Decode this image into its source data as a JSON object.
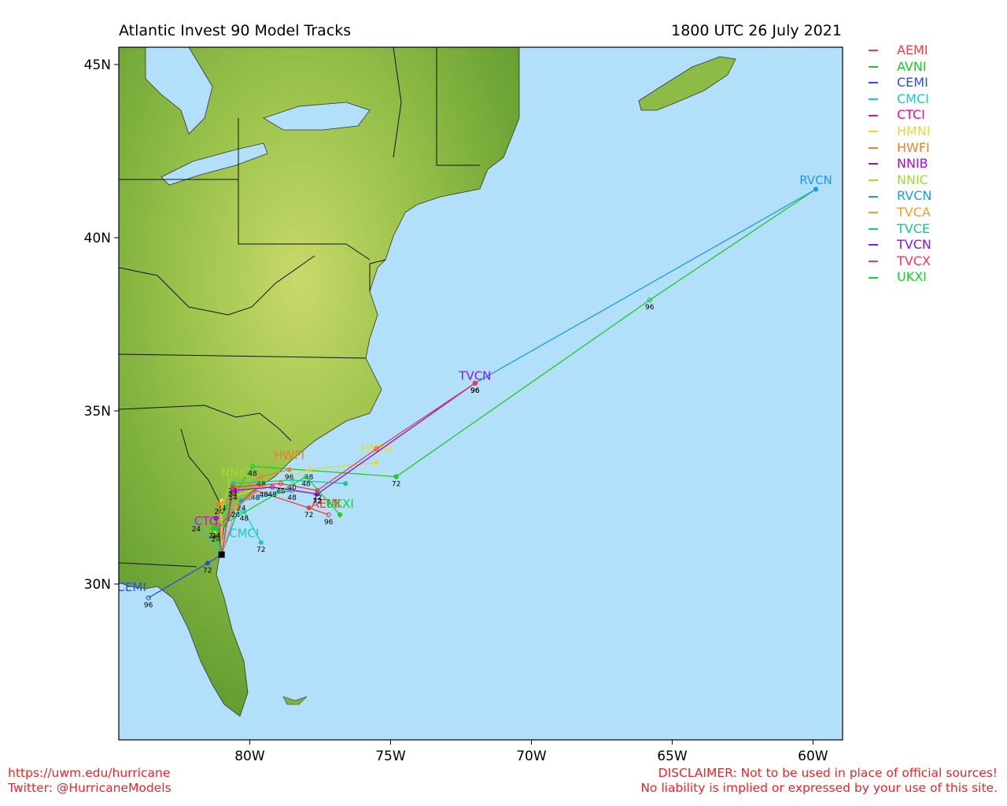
{
  "title": "Atlantic Invest 90 Model Tracks",
  "valid_time": "1800 UTC 26 July 2021",
  "axes": {
    "lon_ticks": [
      {
        "lon": -80,
        "label": "80W"
      },
      {
        "lon": -75,
        "label": "75W"
      },
      {
        "lon": -70,
        "label": "70W"
      },
      {
        "lon": -65,
        "label": "65W"
      },
      {
        "lon": -60,
        "label": "60W"
      }
    ],
    "lat_ticks": [
      {
        "lat": 45,
        "label": "45N"
      },
      {
        "lat": 40,
        "label": "40N"
      },
      {
        "lat": 35,
        "label": "35N"
      },
      {
        "lat": 30,
        "label": "30N"
      }
    ],
    "lon_range": [
      -84.65,
      -58.95
    ],
    "lat_range": [
      25.5,
      45.5
    ]
  },
  "colors": {
    "ocean": "#b2e0fa",
    "land": "#7cb342",
    "border": "#111111"
  },
  "legend": [
    {
      "name": "AEMI",
      "color": "#f03c3c"
    },
    {
      "name": "AVNI",
      "color": "#22c822"
    },
    {
      "name": "CEMI",
      "color": "#2a4fe0"
    },
    {
      "name": "CMCI",
      "color": "#1ec8c8"
    },
    {
      "name": "CTCI",
      "color": "#e0109a"
    },
    {
      "name": "HMNI",
      "color": "#e6d83c"
    },
    {
      "name": "HWFI",
      "color": "#e68232"
    },
    {
      "name": "NNIB",
      "color": "#a012c8"
    },
    {
      "name": "NNIC",
      "color": "#a0dc32"
    },
    {
      "name": "RVCN",
      "color": "#1e9be6"
    },
    {
      "name": "TVCA",
      "color": "#e6a03c"
    },
    {
      "name": "TVCE",
      "color": "#14c896"
    },
    {
      "name": "TVCN",
      "color": "#8c14e6"
    },
    {
      "name": "TVCX",
      "color": "#eb3c50"
    },
    {
      "name": "UKXI",
      "color": "#14d228"
    }
  ],
  "storm_start": {
    "lon": -81.0,
    "lat": 30.85
  },
  "tracks": [
    {
      "model": "AEMI",
      "color": "#f03c3c",
      "label": "AEMI",
      "label_at": {
        "lon": -77.3,
        "lat": 32.2
      },
      "points": [
        [
          -81.0,
          30.85,
          ""
        ],
        [
          -81.2,
          31.6,
          "24"
        ],
        [
          -79.8,
          32.7,
          "48"
        ],
        [
          -77.9,
          32.2,
          "72"
        ],
        [
          -77.2,
          32.0,
          "96"
        ]
      ]
    },
    {
      "model": "AVNI",
      "color": "#22c822",
      "label": "",
      "label_at": null,
      "points": [
        [
          -81.0,
          30.85,
          ""
        ],
        [
          -81.3,
          31.6,
          "24"
        ],
        [
          -79.9,
          33.4,
          "48"
        ],
        [
          -74.8,
          33.1,
          "72"
        ],
        [
          -65.8,
          38.2,
          "96"
        ],
        [
          -59.9,
          41.4,
          ""
        ]
      ]
    },
    {
      "model": "CEMI",
      "color": "#2a4fe0",
      "label": "CEMI",
      "label_at": {
        "lon": -84.2,
        "lat": 29.8
      },
      "points": [
        [
          -81.0,
          30.85,
          ""
        ],
        [
          -81.5,
          30.6,
          "72"
        ],
        [
          -83.6,
          29.6,
          "96"
        ]
      ]
    },
    {
      "model": "CMCI",
      "color": "#1ec8c8",
      "label": "CMCI",
      "label_at": {
        "lon": -80.2,
        "lat": 31.35
      },
      "points": [
        [
          -81.0,
          30.85,
          ""
        ],
        [
          -81.9,
          31.8,
          "24"
        ],
        [
          -80.2,
          32.1,
          "48"
        ],
        [
          -79.6,
          31.2,
          "72"
        ]
      ]
    },
    {
      "model": "CTCI",
      "color": "#e0109a",
      "label": "CTCI",
      "label_at": {
        "lon": -81.5,
        "lat": 31.7
      },
      "points": [
        [
          -81.0,
          30.85,
          ""
        ],
        [
          -81.1,
          31.7,
          ""
        ]
      ]
    },
    {
      "model": "HMNI",
      "color": "#e6d83c",
      "label": "HMNI",
      "label_at": {
        "lon": -75.5,
        "lat": 33.8
      },
      "points": [
        [
          -81.0,
          30.85,
          ""
        ],
        [
          -81.0,
          32.4,
          "24"
        ],
        [
          -77.9,
          33.3,
          "48"
        ],
        [
          -75.5,
          33.5,
          ""
        ]
      ]
    },
    {
      "model": "HWFI",
      "color": "#e68232",
      "label": "HWFI",
      "label_at": {
        "lon": -78.6,
        "lat": 33.6
      },
      "points": [
        [
          -81.0,
          30.85,
          ""
        ],
        [
          -81.1,
          32.3,
          "24"
        ],
        [
          -79.6,
          33.1,
          "48"
        ],
        [
          -78.6,
          33.3,
          "96"
        ]
      ]
    },
    {
      "model": "NNIB",
      "color": "#a012c8",
      "label": "",
      "label_at": null,
      "points": [
        [
          -81.0,
          30.85,
          ""
        ],
        [
          -81.2,
          31.9,
          ""
        ]
      ]
    },
    {
      "model": "NNIC",
      "color": "#a0dc32",
      "label": "NNIC",
      "label_at": {
        "lon": -80.5,
        "lat": 33.1
      },
      "points": [
        [
          -81.0,
          30.85,
          ""
        ],
        [
          -81.2,
          31.5,
          "24"
        ],
        [
          -80.7,
          33.0,
          ""
        ]
      ]
    },
    {
      "model": "RVCN",
      "color": "#1e9be6",
      "label": "RVCN",
      "label_at": {
        "lon": -59.9,
        "lat": 41.55
      },
      "points": [
        [
          -81.0,
          30.85,
          ""
        ],
        [
          -80.3,
          32.4,
          "24"
        ],
        [
          -78.5,
          32.7,
          "48"
        ],
        [
          -77.6,
          32.6,
          "72"
        ],
        [
          -72.0,
          35.8,
          "96"
        ],
        [
          -59.9,
          41.4,
          ""
        ]
      ]
    },
    {
      "model": "TVCA",
      "color": "#e6a03c",
      "label": "",
      "label_at": null,
      "points": [
        [
          -81.0,
          30.85,
          ""
        ],
        [
          -80.5,
          32.2,
          "24"
        ],
        [
          -79.5,
          32.8,
          "48"
        ],
        [
          -77.6,
          32.6,
          "72"
        ]
      ]
    },
    {
      "model": "TVCE",
      "color": "#14c896",
      "label": "",
      "label_at": null,
      "points": [
        [
          -81.0,
          30.85,
          ""
        ],
        [
          -80.6,
          32.9,
          "24"
        ],
        [
          -78.5,
          33.0,
          "40"
        ],
        [
          -76.6,
          32.9,
          ""
        ]
      ]
    },
    {
      "model": "TVCN",
      "color": "#8c14e6",
      "label": "TVCN",
      "label_at": {
        "lon": -72.0,
        "lat": 35.9
      },
      "points": [
        [
          -81.0,
          30.85,
          ""
        ],
        [
          -80.6,
          32.7,
          "24"
        ],
        [
          -79.2,
          32.8,
          "48"
        ],
        [
          -77.6,
          32.6,
          "72"
        ],
        [
          -72.0,
          35.8,
          "96"
        ]
      ]
    },
    {
      "model": "TVCX",
      "color": "#eb3c50",
      "label": "",
      "label_at": null,
      "points": [
        [
          -81.0,
          30.85,
          ""
        ],
        [
          -80.6,
          32.8,
          "24"
        ],
        [
          -78.9,
          32.9,
          "48"
        ],
        [
          -77.6,
          32.7,
          "72"
        ],
        [
          -75.5,
          33.9,
          ""
        ],
        [
          -72.0,
          35.8,
          "96"
        ]
      ]
    },
    {
      "model": "UKXI",
      "color": "#14d228",
      "label": "UKXI",
      "label_at": {
        "lon": -76.8,
        "lat": 32.2
      },
      "points": [
        [
          -81.0,
          30.85,
          ""
        ],
        [
          -81.2,
          31.6,
          "24"
        ],
        [
          -78.0,
          33.1,
          "48"
        ],
        [
          -76.8,
          32.0,
          ""
        ]
      ]
    }
  ],
  "footer": {
    "site": "https://uwm.edu/hurricane",
    "twitter": "Twitter: @HurricaneModels",
    "disclaimer1": "DISCLAIMER: Not to be used in place of official sources!",
    "disclaimer2": "No liability is implied or expressed by your use of this site."
  }
}
